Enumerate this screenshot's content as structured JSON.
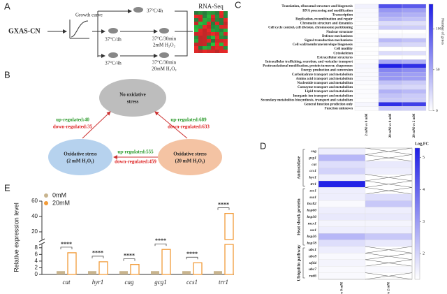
{
  "panel_a": {
    "label": "A",
    "strain": "GXAS-CN",
    "growth": "Growth curve",
    "control": "37°C/4h",
    "pre_2mM": "37°C/4h",
    "treat_2mM": [
      "37°C/30min",
      "2mM H₂O₂"
    ],
    "pre_20mM": "37°C/4h",
    "treat_20mM": [
      "37°C/30min",
      "20mM H₂O₂"
    ],
    "rnaseq": "RNA-Seq"
  },
  "panel_b": {
    "label": "B",
    "nodes": [
      {
        "lines": [
          "No oxidative",
          "stress"
        ]
      },
      {
        "lines": [
          "Oxidative stress",
          "(2 mM H₂O₂)"
        ]
      },
      {
        "lines": [
          "Oxidative stress",
          "(20 mM H₂O₂)"
        ]
      }
    ],
    "edges": [
      {
        "up": "up-regulated:40",
        "down": "down-regulated:35"
      },
      {
        "up": "up-regulated:689",
        "down": "down-regulated:633"
      },
      {
        "up": "up-regulated:555",
        "down": "down-regulated:459"
      }
    ]
  },
  "panel_c": {
    "label": "C",
    "type": "heatmap",
    "categories": [
      "Translation, ribosomal structure and biogenesis",
      "RNA processing and modification",
      "Transcription",
      "Replication, recombination and repair",
      "Chromatin structure and dynamics",
      "Cell cycle control, cell division, chromosome partitioning",
      "Nuclear structure",
      "Defense mechanisms",
      "Signal transduction mechanisms",
      "Cell wall/membrane/envelope biogenesis",
      "Cell motility",
      "Cytoskeleton",
      "Extracellular structures",
      "Intracellular trafficking, secretion, and vesicular transport",
      "Posttranslational modification, protein turnover, chaperones",
      "Energy production and conversion",
      "Carbohydrate transport and metabolism",
      "Amino acid transport and metabolism",
      "Nucleotide transport and metabolism",
      "Coenzyme transport and metabolism",
      "Lipid transport and metabolism",
      "Inorganic ion transport and metabolism",
      "Secondary metabolites biosynthesis, transport and catabolism",
      "General function prediction only",
      "Function unknown"
    ],
    "series": [
      {
        "name": "2 mM vs 0 mM",
        "values": [
          8,
          3,
          3,
          2,
          1,
          2,
          0,
          1,
          2,
          1,
          0,
          1,
          0,
          2,
          5,
          3,
          3,
          3,
          2,
          1,
          2,
          2,
          1,
          5,
          2
        ]
      },
      {
        "name": "20 mM vs 0 mM",
        "values": [
          100,
          60,
          50,
          40,
          20,
          30,
          0,
          5,
          40,
          25,
          0,
          20,
          0,
          50,
          130,
          70,
          60,
          60,
          35,
          25,
          45,
          35,
          30,
          120,
          30
        ]
      },
      {
        "name": "20 mM vs 2 mM",
        "values": [
          95,
          55,
          45,
          35,
          18,
          28,
          0,
          5,
          35,
          22,
          0,
          18,
          0,
          45,
          120,
          65,
          55,
          55,
          30,
          22,
          40,
          30,
          28,
          110,
          28
        ]
      }
    ],
    "colorbar_title": "Number of genes",
    "zlim": [
      0,
      130
    ],
    "zticks": [
      0,
      50,
      100
    ],
    "color": "#1e1ee6"
  },
  "panel_d": {
    "label": "D",
    "type": "heatmap",
    "groups": [
      {
        "name": "Antioxidase",
        "genes": [
          "cag",
          "gcg1",
          "cat",
          "ccs1",
          "hyr1",
          "trr1"
        ]
      },
      {
        "name": "Heat shock protein",
        "genes": [
          "ssc1",
          "ssa1",
          "hsc82",
          "hsp60",
          "hsp30",
          "mcx1",
          "ssz1",
          "hsp26",
          "hsp78"
        ]
      },
      {
        "name": "Ubiquitin pathway",
        "genes": [
          "ubc1",
          "ubc8",
          "ufd4",
          "ubc7",
          "rad6"
        ]
      }
    ],
    "series": [
      {
        "name": "20 mM vs 0 mM",
        "values": [
          1.5,
          2.5,
          1.8,
          2.0,
          1.5,
          5.2,
          1.5,
          1.5,
          1.3,
          1.5,
          1.6,
          1.4,
          1.5,
          2.5,
          1.8,
          1.5,
          1.3,
          1.4,
          1.3,
          1.3
        ]
      },
      {
        "name": "20 mM vs 2 mM",
        "values": [
          null,
          null,
          1.6,
          1.5,
          null,
          null,
          null,
          1.8,
          2.2,
          1.5,
          1.6,
          1.4,
          1.5,
          2.2,
          1.6,
          null,
          null,
          null,
          1.3,
          null
        ]
      }
    ],
    "colorbar_title": "Log₂FC",
    "zlim": [
      1.2,
      5.3
    ],
    "zticks": [
      2,
      3,
      4,
      5
    ],
    "color": "#1e1ee6"
  },
  "panel_e": {
    "label": "E",
    "type": "bar",
    "ylabel": "Relative expression level",
    "categories": [
      "cat",
      "hyr1",
      "cag",
      "gcg1",
      "ccs1",
      "trr1"
    ],
    "series": [
      {
        "name": "0mM",
        "color": "#c8b48e",
        "values": [
          1,
          1,
          1,
          1,
          1,
          1
        ]
      },
      {
        "name": "20mM",
        "color": "#f29b38",
        "values": [
          6.5,
          3.8,
          3.0,
          7.5,
          3.5,
          44
        ]
      }
    ],
    "annotations": [
      "****",
      "****",
      "****",
      "****",
      "****",
      "****"
    ],
    "ylim_lower": [
      0,
      9
    ],
    "yticks_lower": [
      0,
      2,
      4,
      6,
      8
    ],
    "ylim_upper": [
      10,
      60
    ],
    "yticks_upper": [
      20,
      40,
      60
    ]
  }
}
